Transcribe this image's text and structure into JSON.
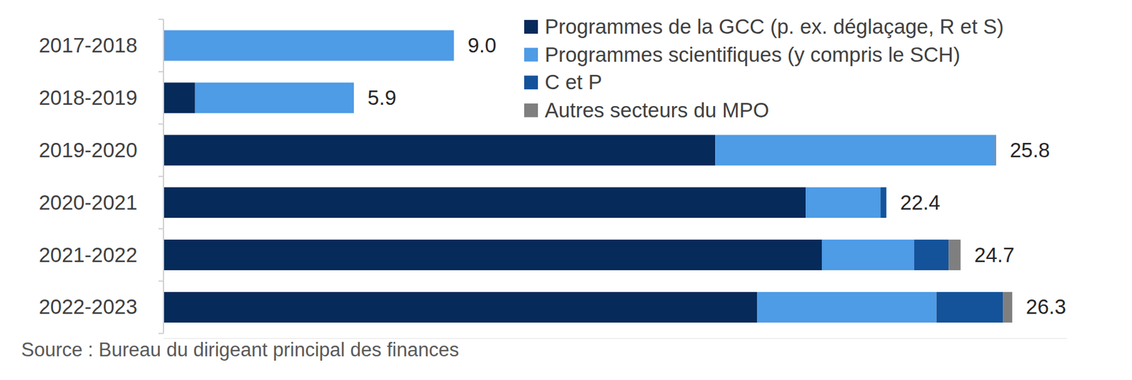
{
  "chart_data": {
    "type": "bar",
    "orientation": "horizontal",
    "stacked": true,
    "data_labels": true,
    "tick_labels": "y",
    "grid": false,
    "legend": "top-right",
    "categories": [
      "2017-2018",
      "2018-2019",
      "2019-2020",
      "2020-2021",
      "2021-2022",
      "2022-2023"
    ],
    "series": [
      {
        "name": "Programmes de la GCC (p. ex. déglaçage, R et S)",
        "color": "#062a5a",
        "values": [
          0.03,
          0.98,
          17.1,
          19.9,
          20.4,
          18.4
        ]
      },
      {
        "name": "Programmes scientifiques (y compris le SCH)",
        "color": "#4e9be6",
        "values": [
          8.97,
          4.92,
          8.66,
          2.32,
          2.86,
          5.55
        ]
      },
      {
        "name": "C et P",
        "color": "#14539a",
        "values": [
          0,
          0,
          0,
          0.18,
          1.07,
          2.06
        ]
      },
      {
        "name": "Autres secteurs du MPO",
        "color": "#7f7f7f",
        "values": [
          0,
          0,
          0.04,
          0,
          0.37,
          0.29
        ]
      }
    ],
    "totals": [
      9,
      5.9,
      25.8,
      22.4,
      24.7,
      26.3
    ],
    "total_labels": [
      "9.0",
      "5.9",
      "25.8",
      "22.4",
      "24.7",
      "26.3"
    ],
    "xlim": [
      0,
      28
    ],
    "source": "Source : Bureau du dirigeant principal des finances"
  }
}
